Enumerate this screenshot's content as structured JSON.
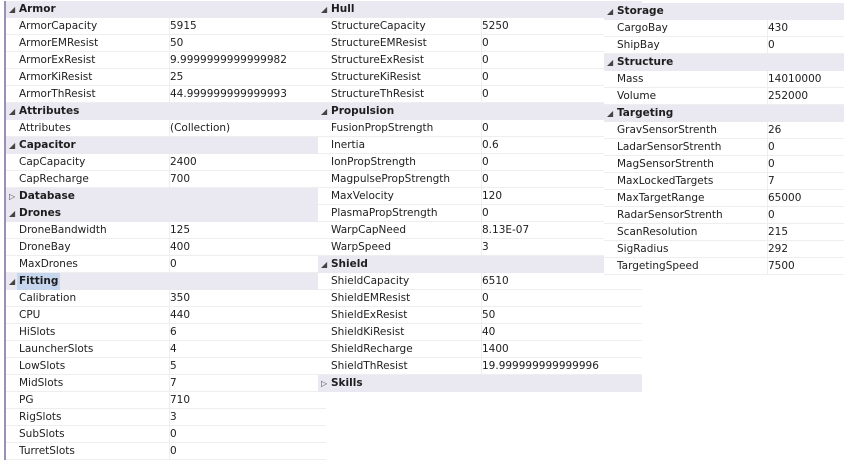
{
  "panes": [
    [
      {
        "category": "Armor",
        "expanded": true,
        "props": [
          [
            "ArmorCapacity",
            "5915"
          ],
          [
            "ArmorEMResist",
            "50"
          ],
          [
            "ArmorExResist",
            "9.9999999999999982"
          ],
          [
            "ArmorKiResist",
            "25"
          ],
          [
            "ArmorThResist",
            "44.999999999999993"
          ]
        ]
      },
      {
        "category": "Attributes",
        "expanded": true,
        "props": [
          [
            "Attributes",
            "(Collection)"
          ]
        ]
      },
      {
        "category": "Capacitor",
        "expanded": true,
        "props": [
          [
            "CapCapacity",
            "2400"
          ],
          [
            "CapRecharge",
            "700"
          ]
        ]
      },
      {
        "category": "Database",
        "expanded": false,
        "props": []
      },
      {
        "category": "Drones",
        "expanded": true,
        "props": [
          [
            "DroneBandwidth",
            "125"
          ],
          [
            "DroneBay",
            "400"
          ],
          [
            "MaxDrones",
            "0"
          ]
        ]
      },
      {
        "category": "Fitting",
        "expanded": true,
        "selected": true,
        "props": [
          [
            "Calibration",
            "350"
          ],
          [
            "CPU",
            "440"
          ],
          [
            "HiSlots",
            "6"
          ],
          [
            "LauncherSlots",
            "4"
          ],
          [
            "LowSlots",
            "5"
          ],
          [
            "MidSlots",
            "7"
          ],
          [
            "PG",
            "710"
          ],
          [
            "RigSlots",
            "3"
          ],
          [
            "SubSlots",
            "0"
          ],
          [
            "TurretSlots",
            "0"
          ]
        ]
      }
    ],
    [
      {
        "category": "Hull",
        "expanded": true,
        "props": [
          [
            "StructureCapacity",
            "5250"
          ],
          [
            "StructureEMResist",
            "0"
          ],
          [
            "StructureExResist",
            "0"
          ],
          [
            "StructureKiResist",
            "0"
          ],
          [
            "StructureThResist",
            "0"
          ]
        ]
      },
      {
        "category": "Propulsion",
        "expanded": true,
        "props": [
          [
            "FusionPropStrength",
            "0"
          ],
          [
            "Inertia",
            "0.6"
          ],
          [
            "IonPropStrength",
            "0"
          ],
          [
            "MagpulsePropStrength",
            "0"
          ],
          [
            "MaxVelocity",
            "120"
          ],
          [
            "PlasmaPropStrength",
            "0"
          ],
          [
            "WarpCapNeed",
            "8.13E-07"
          ],
          [
            "WarpSpeed",
            "3"
          ]
        ]
      },
      {
        "category": "Shield",
        "expanded": true,
        "props": [
          [
            "ShieldCapacity",
            "6510"
          ],
          [
            "ShieldEMResist",
            "0"
          ],
          [
            "ShieldExResist",
            "50"
          ],
          [
            "ShieldKiResist",
            "40"
          ],
          [
            "ShieldRecharge",
            "1400"
          ],
          [
            "ShieldThResist",
            "19.999999999999996"
          ]
        ]
      },
      {
        "category": "Skills",
        "expanded": false,
        "props": []
      }
    ],
    [
      {
        "category": "Storage",
        "expanded": true,
        "props": [
          [
            "CargoBay",
            "430"
          ],
          [
            "ShipBay",
            "0"
          ]
        ]
      },
      {
        "category": "Structure",
        "expanded": true,
        "props": [
          [
            "Mass",
            "14010000"
          ],
          [
            "Volume",
            "252000"
          ]
        ]
      },
      {
        "category": "Targeting",
        "expanded": true,
        "props": [
          [
            "GravSensorStrenth",
            "26"
          ],
          [
            "LadarSensorStrenth",
            "0"
          ],
          [
            "MagSensorStrenth",
            "0"
          ],
          [
            "MaxLockedTargets",
            "7"
          ],
          [
            "MaxTargetRange",
            "65000"
          ],
          [
            "RadarSensorStrenth",
            "0"
          ],
          [
            "ScanResolution",
            "215"
          ],
          [
            "SigRadius",
            "292"
          ],
          [
            "TargetingSpeed",
            "7500"
          ]
        ]
      }
    ]
  ],
  "icons": {
    "expanded": "triangle-down-icon",
    "collapsed": "triangle-right-icon"
  }
}
